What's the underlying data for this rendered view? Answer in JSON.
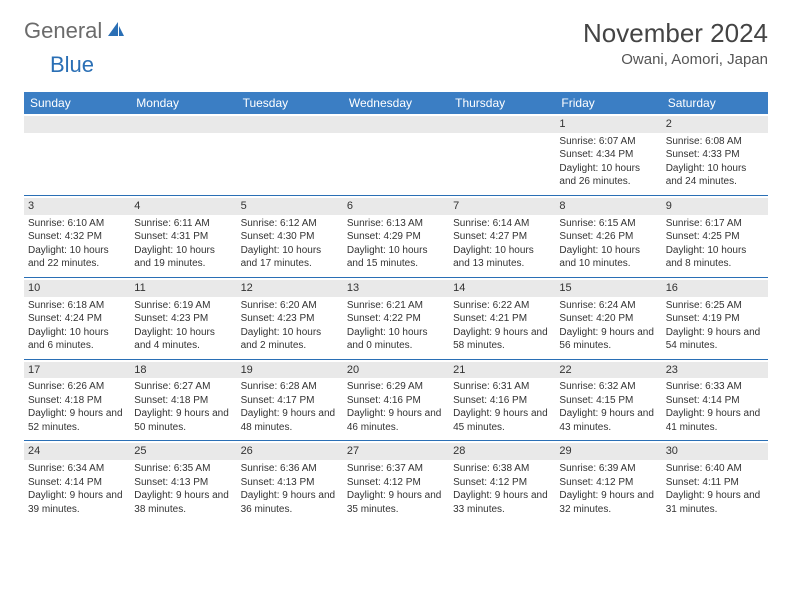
{
  "logo": {
    "text_general": "General",
    "text_blue": "Blue"
  },
  "title": "November 2024",
  "location": "Owani, Aomori, Japan",
  "dow": [
    "Sunday",
    "Monday",
    "Tuesday",
    "Wednesday",
    "Thursday",
    "Friday",
    "Saturday"
  ],
  "colors": {
    "header_bg": "#3b7ec4",
    "header_text": "#ffffff",
    "daynum_bg": "#e9e9e9",
    "rule": "#2a6fb5",
    "logo_gray": "#6b6b6b",
    "logo_blue": "#2a6fb5",
    "text": "#333333"
  },
  "weeks": [
    [
      {
        "n": "",
        "sr": "",
        "ss": "",
        "dl": ""
      },
      {
        "n": "",
        "sr": "",
        "ss": "",
        "dl": ""
      },
      {
        "n": "",
        "sr": "",
        "ss": "",
        "dl": ""
      },
      {
        "n": "",
        "sr": "",
        "ss": "",
        "dl": ""
      },
      {
        "n": "",
        "sr": "",
        "ss": "",
        "dl": ""
      },
      {
        "n": "1",
        "sr": "Sunrise: 6:07 AM",
        "ss": "Sunset: 4:34 PM",
        "dl": "Daylight: 10 hours and 26 minutes."
      },
      {
        "n": "2",
        "sr": "Sunrise: 6:08 AM",
        "ss": "Sunset: 4:33 PM",
        "dl": "Daylight: 10 hours and 24 minutes."
      }
    ],
    [
      {
        "n": "3",
        "sr": "Sunrise: 6:10 AM",
        "ss": "Sunset: 4:32 PM",
        "dl": "Daylight: 10 hours and 22 minutes."
      },
      {
        "n": "4",
        "sr": "Sunrise: 6:11 AM",
        "ss": "Sunset: 4:31 PM",
        "dl": "Daylight: 10 hours and 19 minutes."
      },
      {
        "n": "5",
        "sr": "Sunrise: 6:12 AM",
        "ss": "Sunset: 4:30 PM",
        "dl": "Daylight: 10 hours and 17 minutes."
      },
      {
        "n": "6",
        "sr": "Sunrise: 6:13 AM",
        "ss": "Sunset: 4:29 PM",
        "dl": "Daylight: 10 hours and 15 minutes."
      },
      {
        "n": "7",
        "sr": "Sunrise: 6:14 AM",
        "ss": "Sunset: 4:27 PM",
        "dl": "Daylight: 10 hours and 13 minutes."
      },
      {
        "n": "8",
        "sr": "Sunrise: 6:15 AM",
        "ss": "Sunset: 4:26 PM",
        "dl": "Daylight: 10 hours and 10 minutes."
      },
      {
        "n": "9",
        "sr": "Sunrise: 6:17 AM",
        "ss": "Sunset: 4:25 PM",
        "dl": "Daylight: 10 hours and 8 minutes."
      }
    ],
    [
      {
        "n": "10",
        "sr": "Sunrise: 6:18 AM",
        "ss": "Sunset: 4:24 PM",
        "dl": "Daylight: 10 hours and 6 minutes."
      },
      {
        "n": "11",
        "sr": "Sunrise: 6:19 AM",
        "ss": "Sunset: 4:23 PM",
        "dl": "Daylight: 10 hours and 4 minutes."
      },
      {
        "n": "12",
        "sr": "Sunrise: 6:20 AM",
        "ss": "Sunset: 4:23 PM",
        "dl": "Daylight: 10 hours and 2 minutes."
      },
      {
        "n": "13",
        "sr": "Sunrise: 6:21 AM",
        "ss": "Sunset: 4:22 PM",
        "dl": "Daylight: 10 hours and 0 minutes."
      },
      {
        "n": "14",
        "sr": "Sunrise: 6:22 AM",
        "ss": "Sunset: 4:21 PM",
        "dl": "Daylight: 9 hours and 58 minutes."
      },
      {
        "n": "15",
        "sr": "Sunrise: 6:24 AM",
        "ss": "Sunset: 4:20 PM",
        "dl": "Daylight: 9 hours and 56 minutes."
      },
      {
        "n": "16",
        "sr": "Sunrise: 6:25 AM",
        "ss": "Sunset: 4:19 PM",
        "dl": "Daylight: 9 hours and 54 minutes."
      }
    ],
    [
      {
        "n": "17",
        "sr": "Sunrise: 6:26 AM",
        "ss": "Sunset: 4:18 PM",
        "dl": "Daylight: 9 hours and 52 minutes."
      },
      {
        "n": "18",
        "sr": "Sunrise: 6:27 AM",
        "ss": "Sunset: 4:18 PM",
        "dl": "Daylight: 9 hours and 50 minutes."
      },
      {
        "n": "19",
        "sr": "Sunrise: 6:28 AM",
        "ss": "Sunset: 4:17 PM",
        "dl": "Daylight: 9 hours and 48 minutes."
      },
      {
        "n": "20",
        "sr": "Sunrise: 6:29 AM",
        "ss": "Sunset: 4:16 PM",
        "dl": "Daylight: 9 hours and 46 minutes."
      },
      {
        "n": "21",
        "sr": "Sunrise: 6:31 AM",
        "ss": "Sunset: 4:16 PM",
        "dl": "Daylight: 9 hours and 45 minutes."
      },
      {
        "n": "22",
        "sr": "Sunrise: 6:32 AM",
        "ss": "Sunset: 4:15 PM",
        "dl": "Daylight: 9 hours and 43 minutes."
      },
      {
        "n": "23",
        "sr": "Sunrise: 6:33 AM",
        "ss": "Sunset: 4:14 PM",
        "dl": "Daylight: 9 hours and 41 minutes."
      }
    ],
    [
      {
        "n": "24",
        "sr": "Sunrise: 6:34 AM",
        "ss": "Sunset: 4:14 PM",
        "dl": "Daylight: 9 hours and 39 minutes."
      },
      {
        "n": "25",
        "sr": "Sunrise: 6:35 AM",
        "ss": "Sunset: 4:13 PM",
        "dl": "Daylight: 9 hours and 38 minutes."
      },
      {
        "n": "26",
        "sr": "Sunrise: 6:36 AM",
        "ss": "Sunset: 4:13 PM",
        "dl": "Daylight: 9 hours and 36 minutes."
      },
      {
        "n": "27",
        "sr": "Sunrise: 6:37 AM",
        "ss": "Sunset: 4:12 PM",
        "dl": "Daylight: 9 hours and 35 minutes."
      },
      {
        "n": "28",
        "sr": "Sunrise: 6:38 AM",
        "ss": "Sunset: 4:12 PM",
        "dl": "Daylight: 9 hours and 33 minutes."
      },
      {
        "n": "29",
        "sr": "Sunrise: 6:39 AM",
        "ss": "Sunset: 4:12 PM",
        "dl": "Daylight: 9 hours and 32 minutes."
      },
      {
        "n": "30",
        "sr": "Sunrise: 6:40 AM",
        "ss": "Sunset: 4:11 PM",
        "dl": "Daylight: 9 hours and 31 minutes."
      }
    ]
  ]
}
